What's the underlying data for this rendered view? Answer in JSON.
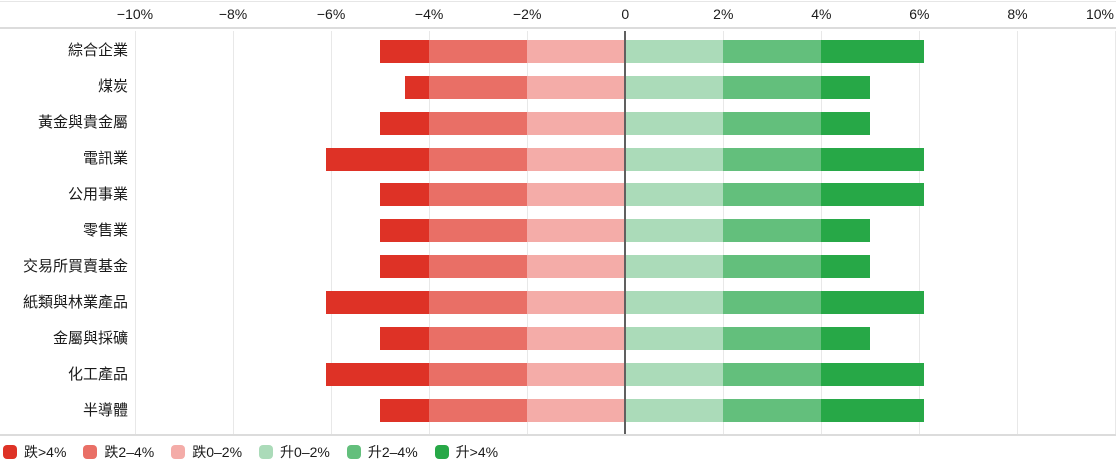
{
  "chart_data": {
    "type": "bar",
    "variant": "diverging-stacked-horizontal",
    "title": "",
    "xlabel": "",
    "ylabel": "",
    "grid": true,
    "legend_position": "bottom-left",
    "x_axis": {
      "min": -10,
      "max": 10,
      "ticks": [
        {
          "value": -10,
          "label": "−10%"
        },
        {
          "value": -8,
          "label": "−8%"
        },
        {
          "value": -6,
          "label": "−6%"
        },
        {
          "value": -4,
          "label": "−4%"
        },
        {
          "value": -2,
          "label": "−2%"
        },
        {
          "value": 0,
          "label": "0"
        },
        {
          "value": 2,
          "label": "2%"
        },
        {
          "value": 4,
          "label": "4%"
        },
        {
          "value": 6,
          "label": "6%"
        },
        {
          "value": 8,
          "label": "8%"
        },
        {
          "value": 10,
          "label": "10%"
        }
      ]
    },
    "bands": [
      {
        "label": "跌>4%",
        "color": "#de3226",
        "from": null,
        "to": -4
      },
      {
        "label": "跌2–4%",
        "color": "#e96f66",
        "from": -4,
        "to": -2
      },
      {
        "label": "跌0–2%",
        "color": "#f4aca8",
        "from": -2,
        "to": 0
      },
      {
        "label": "升0–2%",
        "color": "#abdbb9",
        "from": 0,
        "to": 2
      },
      {
        "label": "升2–4%",
        "color": "#63bf7c",
        "from": 2,
        "to": 4
      },
      {
        "label": "升>4%",
        "color": "#27a847",
        "from": 4,
        "to": null
      }
    ],
    "rows": [
      {
        "category": "綜合企業",
        "min": -5.0,
        "max": 6.1
      },
      {
        "category": "煤炭",
        "min": -4.5,
        "max": 5.0
      },
      {
        "category": "黃金與貴金屬",
        "min": -5.0,
        "max": 5.0
      },
      {
        "category": "電訊業",
        "min": -6.1,
        "max": 6.1
      },
      {
        "category": "公用事業",
        "min": -5.0,
        "max": 6.1
      },
      {
        "category": "零售業",
        "min": -5.0,
        "max": 5.0
      },
      {
        "category": "交易所買賣基金",
        "min": -5.0,
        "max": 5.0
      },
      {
        "category": "紙類與林業產品",
        "min": -6.1,
        "max": 6.1
      },
      {
        "category": "金屬與採礦",
        "min": -5.0,
        "max": 5.0
      },
      {
        "category": "化工產品",
        "min": -6.1,
        "max": 6.1
      },
      {
        "category": "半導體",
        "min": -5.0,
        "max": 6.1
      }
    ]
  },
  "style_colors": {
    "gridline": "#e8e8e8",
    "axis_line": "#dcdcdc",
    "zero_line": "#606060",
    "text": "#1a1a1a",
    "background": "#ffffff"
  }
}
